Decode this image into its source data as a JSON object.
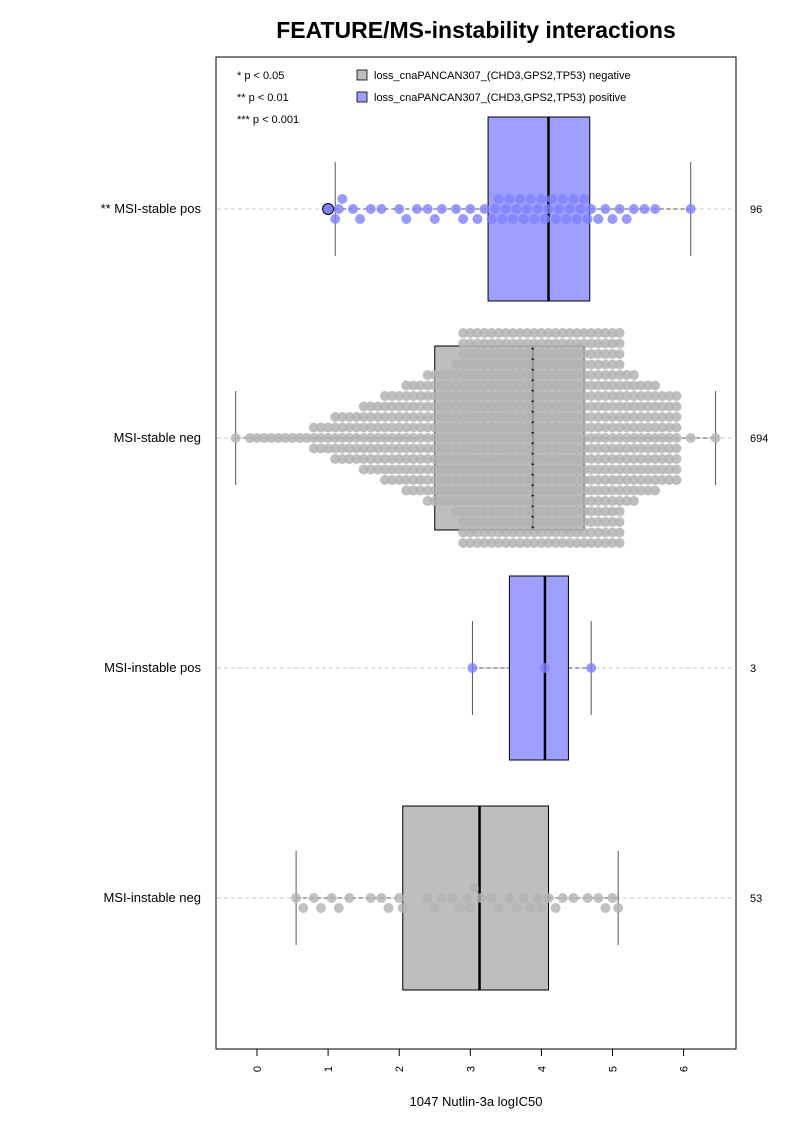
{
  "chart_data": {
    "type": "boxplot-beeswarm",
    "orientation": "horizontal",
    "title": "FEATURE/MS-instability interactions",
    "xlabel": "1047 Nutlin-3a logIC50",
    "xlim": [
      -0.6,
      6.7
    ],
    "xticks": [
      0,
      1,
      2,
      3,
      4,
      5,
      6
    ],
    "grid": "dashed horizontal lines at each group",
    "significance_legend": [
      "* p < 0.05",
      "** p < 0.01",
      "*** p < 0.001"
    ],
    "legend": {
      "position": "top",
      "entries": [
        {
          "label": "loss_cnaPANCAN307_(CHD3,GPS2,TP53) negative",
          "color": "#bebebe"
        },
        {
          "label": "loss_cnaPANCAN307_(CHD3,GPS2,TP53) positive",
          "color": "#9f9fff"
        }
      ]
    },
    "groups": [
      {
        "label": "** MSI-stable pos",
        "n": "96",
        "status": "positive",
        "box": {
          "q1": 3.25,
          "median": 4.1,
          "q3": 4.68
        },
        "whisker": {
          "low": 1.1,
          "high": 6.1
        },
        "points": [
          1.0,
          1.1,
          1.2,
          1.15,
          1.35,
          1.45,
          1.6,
          1.75,
          2.0,
          2.1,
          2.25,
          2.4,
          2.5,
          2.6,
          2.8,
          2.9,
          3.0,
          3.1,
          3.2,
          3.3,
          3.35,
          3.4,
          3.45,
          3.5,
          3.55,
          3.6,
          3.65,
          3.7,
          3.75,
          3.8,
          3.85,
          3.9,
          3.95,
          4.0,
          4.05,
          4.1,
          4.15,
          4.2,
          4.25,
          4.3,
          4.35,
          4.4,
          4.45,
          4.5,
          4.55,
          4.6,
          4.65,
          4.7,
          4.8,
          4.9,
          5.0,
          5.1,
          5.2,
          5.3,
          5.45,
          5.6,
          6.1
        ],
        "highlighted_point": 1.0
      },
      {
        "label": "MSI-stable neg",
        "n": "694",
        "status": "negative",
        "box": {
          "q1": 2.5,
          "median": 3.88,
          "q3": 4.6
        },
        "whisker": {
          "low": -0.3,
          "high": 6.45
        },
        "points": [
          -0.3,
          6.45,
          6.1
        ]
      },
      {
        "label": "MSI-instable pos",
        "n": "3",
        "status": "positive",
        "box": {
          "q1": 3.55,
          "median": 4.05,
          "q3": 4.38
        },
        "whisker": {
          "low": 3.03,
          "high": 4.7
        },
        "points": [
          3.03,
          4.05,
          4.7
        ]
      },
      {
        "label": "MSI-instable neg",
        "n": "53",
        "status": "negative",
        "box": {
          "q1": 2.05,
          "median": 3.13,
          "q3": 4.1
        },
        "whisker": {
          "low": 0.55,
          "high": 5.08
        },
        "points": [
          0.55,
          0.65,
          0.8,
          0.9,
          1.05,
          1.15,
          1.3,
          1.6,
          1.75,
          1.85,
          2.0,
          2.05,
          2.4,
          2.5,
          2.6,
          2.75,
          2.85,
          2.95,
          3.0,
          3.05,
          3.15,
          3.3,
          3.4,
          3.55,
          3.65,
          3.75,
          3.85,
          3.95,
          4.0,
          4.1,
          4.2,
          4.3,
          4.45,
          4.65,
          4.8,
          4.9,
          5.0,
          5.08
        ]
      }
    ]
  }
}
